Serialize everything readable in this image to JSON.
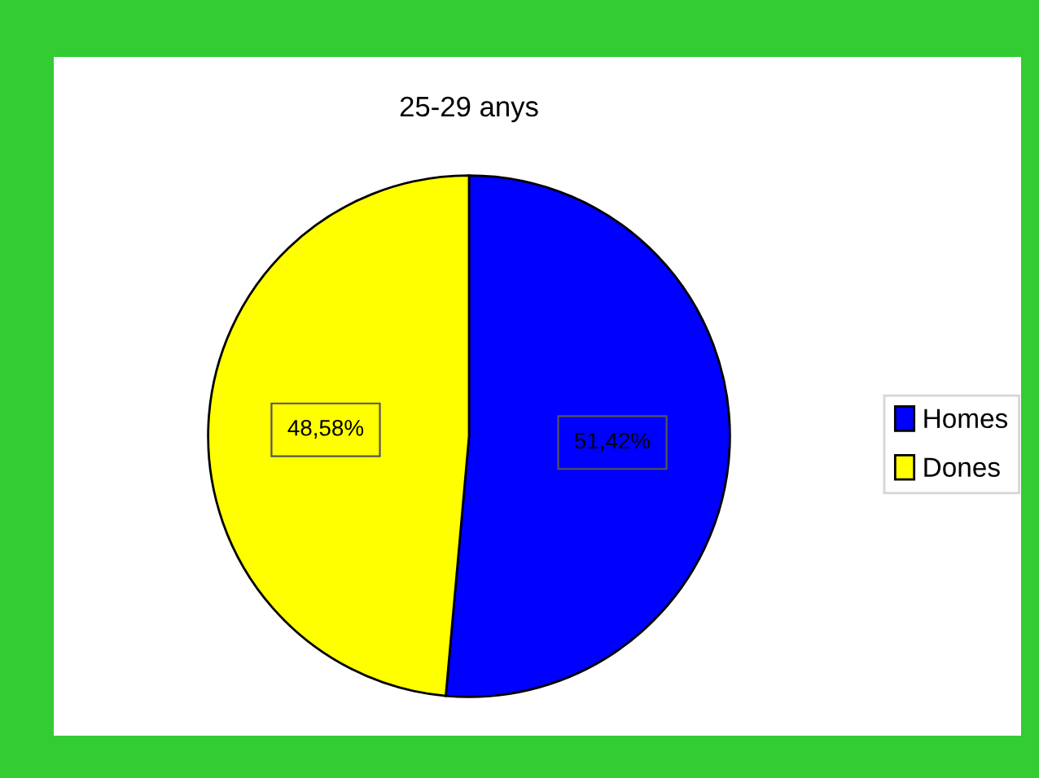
{
  "chart_data": {
    "type": "pie",
    "title": "25-29 anys",
    "categories": [
      "Homes",
      "Dones"
    ],
    "values": [
      51.42,
      48.58
    ],
    "colors": [
      "#0000ff",
      "#ffff00"
    ],
    "value_labels": [
      "51,42%",
      "48,58%"
    ],
    "legend": "right"
  }
}
